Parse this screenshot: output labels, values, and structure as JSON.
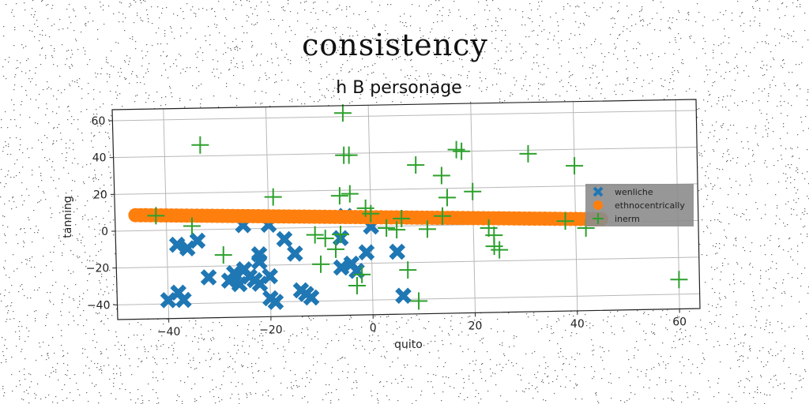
{
  "suptitle": "consistency",
  "chart_data": {
    "type": "scatter",
    "title": "h B personage",
    "xlabel": "quito",
    "ylabel": "tanning",
    "xlim": [
      -50,
      64
    ],
    "ylim": [
      -48,
      66
    ],
    "xticks": [
      -40,
      -20,
      0,
      20,
      40,
      60
    ],
    "yticks": [
      -40,
      -20,
      0,
      20,
      40,
      60
    ],
    "grid": true,
    "legend_position": "right",
    "series": [
      {
        "name": "wenliche",
        "marker": "x",
        "color": "#1f77b4",
        "points": [
          [
            -40,
            -38
          ],
          [
            -38,
            -34
          ],
          [
            -37,
            -38
          ],
          [
            -38,
            -8
          ],
          [
            -36,
            -10
          ],
          [
            -34,
            -6
          ],
          [
            -32,
            -26
          ],
          [
            -28,
            -28
          ],
          [
            -27,
            -24
          ],
          [
            -26,
            -30
          ],
          [
            -25,
            -22
          ],
          [
            -24,
            -26
          ],
          [
            -23,
            -28
          ],
          [
            -22,
            -14
          ],
          [
            -22,
            -18
          ],
          [
            -22,
            -30
          ],
          [
            -20,
            -26
          ],
          [
            -20,
            -38
          ],
          [
            -19,
            -40
          ],
          [
            -17,
            -6
          ],
          [
            -15,
            -14
          ],
          [
            -14,
            -34
          ],
          [
            -13,
            -36
          ],
          [
            -12,
            -38
          ],
          [
            -6,
            -6
          ],
          [
            -6,
            -22
          ],
          [
            -4,
            -20
          ],
          [
            -3,
            -24
          ],
          [
            -1,
            -14
          ],
          [
            -25,
            2
          ],
          [
            -20,
            2
          ],
          [
            -5,
            6
          ],
          [
            0,
            0
          ],
          [
            5,
            -14
          ],
          [
            6,
            -38
          ]
        ]
      },
      {
        "name": "ethnocentrically",
        "marker": "o",
        "color": "#ff7f0e",
        "points": [
          [
            -46,
            8.5
          ],
          [
            -42,
            8.2
          ],
          [
            -38,
            7.9
          ],
          [
            -34,
            7.6
          ],
          [
            -30,
            7.3
          ],
          [
            -26,
            7.0
          ],
          [
            -22,
            6.7
          ],
          [
            -18,
            6.4
          ],
          [
            -14,
            6.1
          ],
          [
            -10,
            5.8
          ],
          [
            -6,
            5.5
          ],
          [
            -2,
            5.2
          ],
          [
            2,
            4.9
          ],
          [
            6,
            4.6
          ],
          [
            10,
            4.3
          ],
          [
            14,
            4.0
          ],
          [
            18,
            3.7
          ],
          [
            22,
            3.4
          ],
          [
            26,
            3.1
          ],
          [
            30,
            2.8
          ],
          [
            34,
            2.5
          ],
          [
            38,
            2.2
          ],
          [
            42,
            1.9
          ],
          [
            45,
            1.7
          ]
        ]
      },
      {
        "name": "inerm",
        "marker": "+",
        "color": "#2ca02c",
        "points": [
          [
            -42,
            8
          ],
          [
            -35,
            2
          ],
          [
            -33,
            46
          ],
          [
            -29,
            -14
          ],
          [
            -19,
            17
          ],
          [
            -11,
            -4
          ],
          [
            -10,
            -20
          ],
          [
            -9,
            -6
          ],
          [
            -7,
            -12
          ],
          [
            -6,
            -4
          ],
          [
            -6,
            17
          ],
          [
            -5,
            39
          ],
          [
            -5,
            62
          ],
          [
            -4,
            18
          ],
          [
            -4,
            39
          ],
          [
            -3,
            -32
          ],
          [
            -2,
            -26
          ],
          [
            -1,
            10
          ],
          [
            0,
            7
          ],
          [
            3,
            -1
          ],
          [
            5,
            -2
          ],
          [
            6,
            4
          ],
          [
            7,
            -24
          ],
          [
            9,
            -41
          ],
          [
            9,
            33
          ],
          [
            11,
            -2
          ],
          [
            14,
            5
          ],
          [
            14,
            27
          ],
          [
            15,
            15
          ],
          [
            17,
            41
          ],
          [
            18,
            40
          ],
          [
            20,
            18
          ],
          [
            23,
            -2
          ],
          [
            24,
            -6
          ],
          [
            24,
            -12
          ],
          [
            25,
            -14
          ],
          [
            31,
            38
          ],
          [
            38,
            1
          ],
          [
            40,
            31
          ],
          [
            42,
            -3
          ],
          [
            60,
            -32
          ]
        ]
      }
    ]
  }
}
